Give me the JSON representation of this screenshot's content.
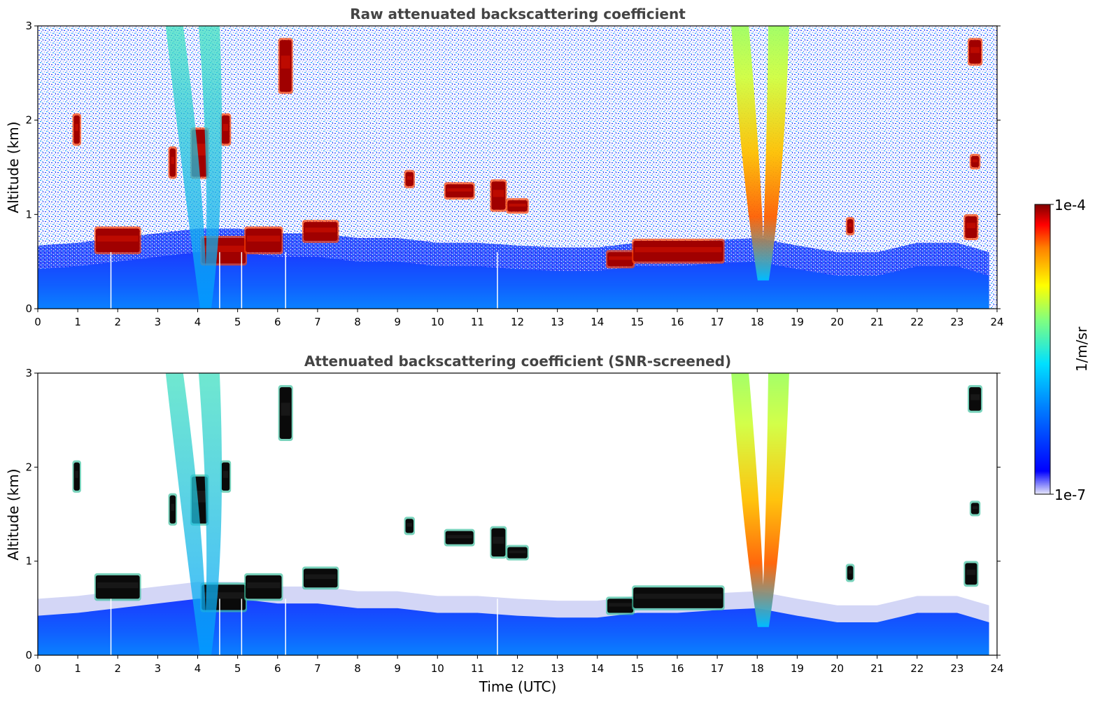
{
  "chart_data": [
    {
      "type": "heatmap",
      "title": "Raw attenuated backscattering coefficient",
      "xlabel": "",
      "ylabel": "Altitude (km)",
      "xlim": [
        0,
        24
      ],
      "ylim": [
        0,
        3
      ],
      "xticks": [
        "0",
        "1",
        "2",
        "3",
        "4",
        "5",
        "6",
        "7",
        "8",
        "9",
        "10",
        "11",
        "12",
        "13",
        "14",
        "15",
        "16",
        "17",
        "18",
        "19",
        "20",
        "21",
        "22",
        "23",
        "24"
      ],
      "yticks": [
        "0",
        "1",
        "2",
        "3"
      ],
      "screened": false,
      "features": [
        {
          "kind": "boundary_layer",
          "t": [
            0,
            1,
            2,
            3,
            4,
            5,
            6,
            7,
            8,
            9,
            10,
            11,
            12,
            13,
            14,
            15,
            16,
            17,
            18,
            19,
            20,
            21,
            22,
            23,
            23.8
          ],
          "top_km": [
            0.42,
            0.45,
            0.5,
            0.55,
            0.6,
            0.6,
            0.55,
            0.55,
            0.5,
            0.5,
            0.45,
            0.45,
            0.42,
            0.4,
            0.4,
            0.45,
            0.45,
            0.48,
            0.5,
            0.42,
            0.35,
            0.35,
            0.45,
            0.45,
            0.35
          ]
        },
        {
          "kind": "cloud",
          "t0": 1.45,
          "t1": 2.55,
          "bottom_km": 0.6,
          "top_km": 0.85
        },
        {
          "kind": "cloud",
          "t0": 0.9,
          "t1": 1.05,
          "bottom_km": 1.75,
          "top_km": 2.05
        },
        {
          "kind": "cloud",
          "t0": 3.3,
          "t1": 3.45,
          "bottom_km": 1.4,
          "top_km": 1.7
        },
        {
          "kind": "cloud",
          "t0": 3.85,
          "t1": 4.25,
          "bottom_km": 1.4,
          "top_km": 1.9
        },
        {
          "kind": "cloud",
          "t0": 4.6,
          "t1": 4.8,
          "bottom_km": 1.75,
          "top_km": 2.05
        },
        {
          "kind": "cloud",
          "t0": 6.05,
          "t1": 6.35,
          "bottom_km": 2.3,
          "top_km": 2.85
        },
        {
          "kind": "cloud",
          "t0": 4.1,
          "t1": 5.2,
          "bottom_km": 0.48,
          "top_km": 0.75
        },
        {
          "kind": "cloud",
          "t0": 5.2,
          "t1": 6.1,
          "bottom_km": 0.6,
          "top_km": 0.85
        },
        {
          "kind": "cloud",
          "t0": 6.65,
          "t1": 7.5,
          "bottom_km": 0.72,
          "top_km": 0.92
        },
        {
          "kind": "cloud",
          "t0": 10.2,
          "t1": 10.9,
          "bottom_km": 1.18,
          "top_km": 1.32
        },
        {
          "kind": "cloud",
          "t0": 11.35,
          "t1": 11.7,
          "bottom_km": 1.05,
          "top_km": 1.35
        },
        {
          "kind": "cloud",
          "t0": 11.75,
          "t1": 12.25,
          "bottom_km": 1.03,
          "top_km": 1.15
        },
        {
          "kind": "cloud",
          "t0": 9.2,
          "t1": 9.4,
          "bottom_km": 1.3,
          "top_km": 1.45
        },
        {
          "kind": "cloud",
          "t0": 14.25,
          "t1": 14.9,
          "bottom_km": 0.45,
          "top_km": 0.6
        },
        {
          "kind": "cloud",
          "t0": 14.9,
          "t1": 17.15,
          "bottom_km": 0.5,
          "top_km": 0.72
        },
        {
          "kind": "cloud",
          "t0": 23.3,
          "t1": 23.6,
          "bottom_km": 2.6,
          "top_km": 2.85
        },
        {
          "kind": "cloud",
          "t0": 23.35,
          "t1": 23.55,
          "bottom_km": 1.5,
          "top_km": 1.62
        },
        {
          "kind": "cloud",
          "t0": 20.25,
          "t1": 20.4,
          "bottom_km": 0.8,
          "top_km": 0.95
        },
        {
          "kind": "cloud",
          "t0": 23.2,
          "t1": 23.5,
          "bottom_km": 0.75,
          "top_km": 0.98
        },
        {
          "kind": "plume",
          "t_top0": 17.35,
          "t_top1": 18.8,
          "t_bottom": 18.15,
          "bottom_km": 0.3,
          "top_km": 3.0
        },
        {
          "kind": "plume",
          "t_top0": 3.2,
          "t_top1": 4.55,
          "t_bottom": 4.2,
          "bottom_km": 0.0,
          "top_km": 3.0
        }
      ]
    },
    {
      "type": "heatmap",
      "title": "Attenuated backscattering coefficient (SNR-screened)",
      "xlabel": "Time (UTC)",
      "ylabel": "Altitude (km)",
      "xlim": [
        0,
        24
      ],
      "ylim": [
        0,
        3
      ],
      "xticks": [
        "0",
        "1",
        "2",
        "3",
        "4",
        "5",
        "6",
        "7",
        "8",
        "9",
        "10",
        "11",
        "12",
        "13",
        "14",
        "15",
        "16",
        "17",
        "18",
        "19",
        "20",
        "21",
        "22",
        "23",
        "24"
      ],
      "yticks": [
        "0",
        "1",
        "2",
        "3"
      ],
      "screened": true,
      "features": "same as raw panel, with noise above the boundary layer removed"
    }
  ],
  "colorbar": {
    "label": "1/m/sr",
    "min_label": "1e-7",
    "max_label": "1e-4",
    "scale": "log",
    "colormap": [
      "#e8e8f8",
      "#0000ff",
      "#0080ff",
      "#00e0ff",
      "#80ff80",
      "#ffff00",
      "#ff8000",
      "#ff0000",
      "#800000"
    ]
  }
}
